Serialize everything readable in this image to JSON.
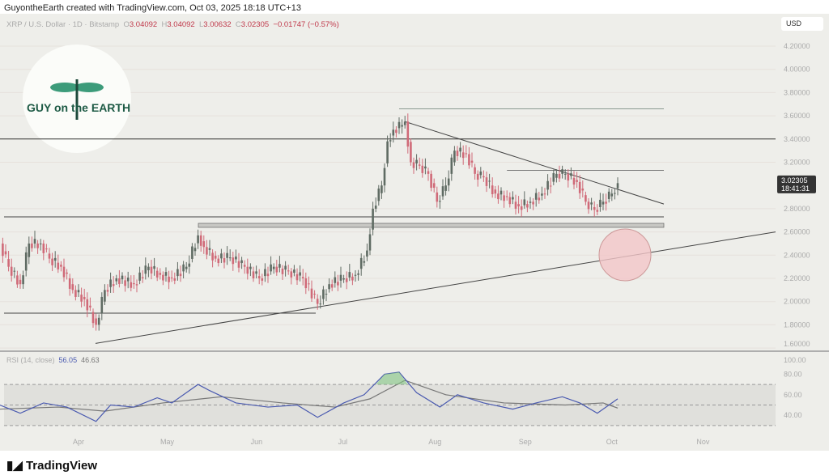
{
  "header": {
    "text": "GuyontheEarth created with TradingView.com, Oct 03, 2025 18:18 UTC+13"
  },
  "legend": {
    "symbol": "XRP / U.S. Dollar · 1D · Bitstamp",
    "o_label": "O",
    "o": "3.04092",
    "h_label": "H",
    "h": "3.04092",
    "l_label": "L",
    "l": "3.00632",
    "c_label": "C",
    "c": "3.02305",
    "change": "−0.01747 (−0.57%)"
  },
  "currency": "USD",
  "logo": {
    "text": "GUY on the EARTH"
  },
  "price_tag": {
    "price": "3.02305",
    "countdown": "18:41:31"
  },
  "rsi": {
    "label": "RSI (14, close)",
    "value": "56.05",
    "ma_value": "46.63"
  },
  "brand": "TradingView",
  "colors": {
    "up": "#5f6b63",
    "down": "#d06a78",
    "rsi": "#4a5ab0",
    "rsi_ma": "#777",
    "circle": "#f2c5c8"
  },
  "chart_data": {
    "type": "candlestick",
    "y_ticks": [
      "4.20000",
      "4.00000",
      "3.80000",
      "3.60000",
      "3.40000",
      "3.20000",
      "2.80000",
      "2.60000",
      "2.40000",
      "2.20000",
      "2.00000",
      "1.80000",
      "1.60000"
    ],
    "y_range": [
      1.6,
      4.3
    ],
    "x_ticks": [
      "Apr",
      "May",
      "Jun",
      "Jul",
      "Aug",
      "Sep",
      "Oct",
      "Nov"
    ],
    "rsi_ticks": [
      "100.00",
      "80.00",
      "60.00",
      "40.00"
    ],
    "closes": [
      [
        "2025-03-05",
        2.5
      ],
      [
        "2025-03-08",
        2.3
      ],
      [
        "2025-03-12",
        2.15
      ],
      [
        "2025-03-15",
        2.5
      ],
      [
        "2025-03-19",
        2.5
      ],
      [
        "2025-03-22",
        2.37
      ],
      [
        "2025-03-26",
        2.3
      ],
      [
        "2025-03-30",
        2.1
      ],
      [
        "2025-04-03",
        2.02
      ],
      [
        "2025-04-07",
        1.8
      ],
      [
        "2025-04-10",
        2.1
      ],
      [
        "2025-04-14",
        2.2
      ],
      [
        "2025-04-20",
        2.15
      ],
      [
        "2025-04-25",
        2.3
      ],
      [
        "2025-04-29",
        2.23
      ],
      [
        "2025-05-03",
        2.2
      ],
      [
        "2025-05-08",
        2.3
      ],
      [
        "2025-05-12",
        2.57
      ],
      [
        "2025-05-14",
        2.47
      ],
      [
        "2025-05-18",
        2.37
      ],
      [
        "2025-05-23",
        2.38
      ],
      [
        "2025-05-28",
        2.3
      ],
      [
        "2025-06-02",
        2.2
      ],
      [
        "2025-06-07",
        2.3
      ],
      [
        "2025-06-12",
        2.26
      ],
      [
        "2025-06-17",
        2.2
      ],
      [
        "2025-06-22",
        1.98
      ],
      [
        "2025-06-26",
        2.15
      ],
      [
        "2025-07-01",
        2.2
      ],
      [
        "2025-07-05",
        2.23
      ],
      [
        "2025-07-09",
        2.44
      ],
      [
        "2025-07-11",
        2.8
      ],
      [
        "2025-07-14",
        3.0
      ],
      [
        "2025-07-16",
        3.38
      ],
      [
        "2025-07-18",
        3.48
      ],
      [
        "2025-07-21",
        3.52
      ],
      [
        "2025-07-22",
        3.55
      ],
      [
        "2025-07-24",
        3.2
      ],
      [
        "2025-07-27",
        3.17
      ],
      [
        "2025-07-30",
        3.1
      ],
      [
        "2025-08-02",
        2.86
      ],
      [
        "2025-08-05",
        3.0
      ],
      [
        "2025-08-08",
        3.3
      ],
      [
        "2025-08-12",
        3.27
      ],
      [
        "2025-08-15",
        3.1
      ],
      [
        "2025-08-18",
        3.07
      ],
      [
        "2025-08-22",
        2.93
      ],
      [
        "2025-08-26",
        2.9
      ],
      [
        "2025-08-30",
        2.82
      ],
      [
        "2025-09-03",
        2.86
      ],
      [
        "2025-09-07",
        2.93
      ],
      [
        "2025-09-12",
        3.1
      ],
      [
        "2025-09-15",
        3.1
      ],
      [
        "2025-09-19",
        3.03
      ],
      [
        "2025-09-22",
        2.86
      ],
      [
        "2025-09-25",
        2.79
      ],
      [
        "2025-09-28",
        2.86
      ],
      [
        "2025-10-01",
        2.93
      ],
      [
        "2025-10-03",
        3.02
      ]
    ],
    "levels": [
      3.66,
      3.4,
      3.13,
      2.73,
      2.66,
      1.9
    ],
    "rsi_series": [
      [
        "2025-03-05",
        50
      ],
      [
        "2025-03-12",
        42
      ],
      [
        "2025-03-20",
        52
      ],
      [
        "2025-03-28",
        48
      ],
      [
        "2025-04-07",
        34
      ],
      [
        "2025-04-12",
        50
      ],
      [
        "2025-04-20",
        48
      ],
      [
        "2025-04-28",
        57
      ],
      [
        "2025-05-03",
        52
      ],
      [
        "2025-05-12",
        70
      ],
      [
        "2025-05-16",
        64
      ],
      [
        "2025-05-25",
        52
      ],
      [
        "2025-06-05",
        48
      ],
      [
        "2025-06-15",
        50
      ],
      [
        "2025-06-22",
        38
      ],
      [
        "2025-07-01",
        52
      ],
      [
        "2025-07-08",
        60
      ],
      [
        "2025-07-15",
        80
      ],
      [
        "2025-07-20",
        82
      ],
      [
        "2025-07-26",
        62
      ],
      [
        "2025-08-03",
        48
      ],
      [
        "2025-08-09",
        60
      ],
      [
        "2025-08-18",
        52
      ],
      [
        "2025-08-28",
        46
      ],
      [
        "2025-09-05",
        52
      ],
      [
        "2025-09-14",
        58
      ],
      [
        "2025-09-20",
        52
      ],
      [
        "2025-09-26",
        42
      ],
      [
        "2025-10-03",
        56
      ]
    ],
    "rsi_ma_series": [
      [
        "2025-03-05",
        46
      ],
      [
        "2025-03-25",
        48
      ],
      [
        "2025-04-10",
        44
      ],
      [
        "2025-04-30",
        52
      ],
      [
        "2025-05-20",
        58
      ],
      [
        "2025-06-10",
        52
      ],
      [
        "2025-06-28",
        48
      ],
      [
        "2025-07-10",
        56
      ],
      [
        "2025-07-22",
        74
      ],
      [
        "2025-08-05",
        60
      ],
      [
        "2025-08-25",
        52
      ],
      [
        "2025-09-15",
        50
      ],
      [
        "2025-09-28",
        52
      ],
      [
        "2025-10-03",
        47
      ]
    ]
  }
}
